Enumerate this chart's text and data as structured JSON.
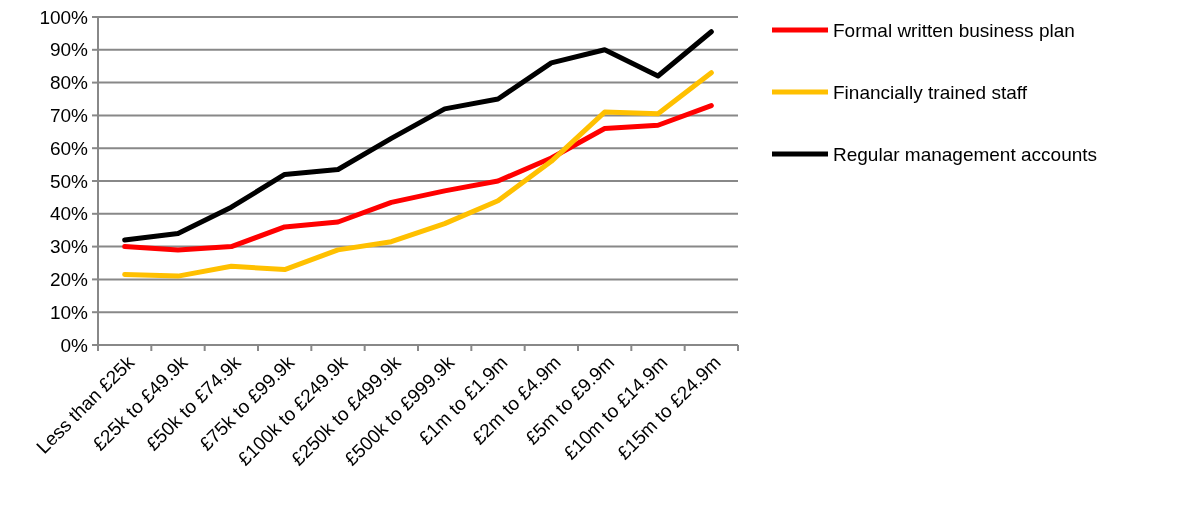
{
  "chart_data": {
    "type": "line",
    "categories": [
      "Less than £25k",
      "£25k to £49.9k",
      "£50k to £74.9k",
      "£75k to £99.9k",
      "£100k to £249.9k",
      "£250k to £499.9k",
      "£500k to £999.9k",
      "£1m to £1.9m",
      "£2m to £4.9m",
      "£5m to £9.9m",
      "£10m to £14.9m",
      "£15m to £24.9m"
    ],
    "series": [
      {
        "name": "Formal written business plan",
        "color": "#ff0000",
        "values": [
          30,
          29,
          30,
          36,
          37.5,
          43.5,
          47,
          50,
          57,
          66,
          67,
          73
        ]
      },
      {
        "name": "Financially trained staff",
        "color": "#ffc000",
        "values": [
          21.5,
          21,
          24,
          23,
          29,
          31.5,
          37,
          44,
          56,
          71,
          70.5,
          83
        ]
      },
      {
        "name": "Regular management accounts",
        "color": "#000000",
        "values": [
          32,
          34,
          42,
          52,
          53.5,
          63,
          72,
          75,
          86,
          90,
          82,
          95.5
        ]
      }
    ],
    "ylim": [
      0,
      100
    ],
    "yticks": [
      {
        "value": 0,
        "label": "0%"
      },
      {
        "value": 10,
        "label": "10%"
      },
      {
        "value": 20,
        "label": "20%"
      },
      {
        "value": 30,
        "label": "30%"
      },
      {
        "value": 40,
        "label": "40%"
      },
      {
        "value": 50,
        "label": "50%"
      },
      {
        "value": 60,
        "label": "60%"
      },
      {
        "value": 70,
        "label": "70%"
      },
      {
        "value": 80,
        "label": "80%"
      },
      {
        "value": 90,
        "label": "90%"
      },
      {
        "value": 100,
        "label": "100%"
      }
    ],
    "grid": "y",
    "legend": "right",
    "marker": "none",
    "line_style": "solid"
  }
}
